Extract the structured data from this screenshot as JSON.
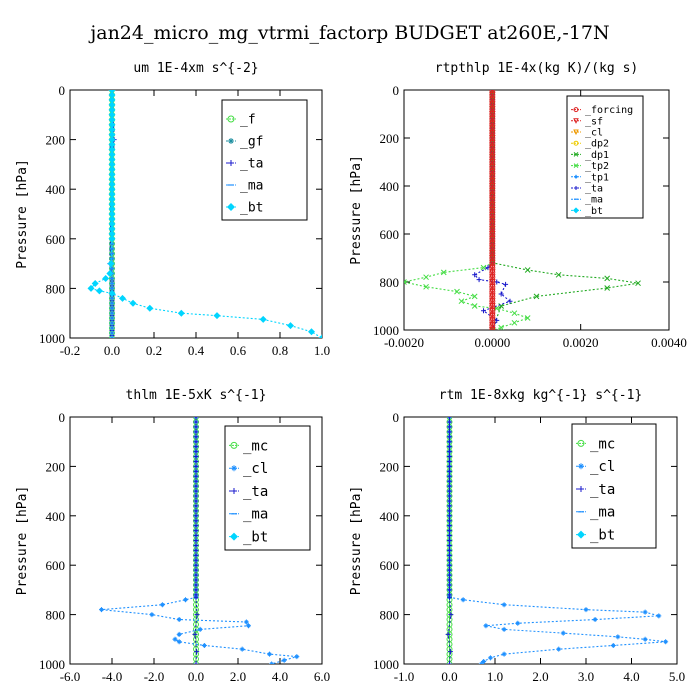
{
  "figure_title": "jan24_micro_mg_vtrmi_factorp  BUDGET at260E,-17N",
  "colors": {
    "axis": "#000000",
    "legend_border": "#000000",
    "series": {
      "forcing": "#dd2222",
      "sf": "#dd2222",
      "cl": "#ee9900",
      "dp2": "#eecc00",
      "dp1": "#22aa22",
      "tp2": "#44dd44",
      "tp1": "#1e90ff",
      "ta": "#1a1acc",
      "ma": "#1e90ff",
      "bt": "#00d5ff",
      "f": "#44dd44",
      "gf": "#1e8fa0",
      "mc": "#44dd44",
      "cl2": "#1e90ff"
    }
  },
  "chart_data": [
    {
      "id": "um",
      "type": "line",
      "title": "um   1E-4xm s^{-2}",
      "ylabel": "Pressure [hPa]",
      "xlim": [
        -0.2,
        1.0
      ],
      "ylim": [
        0,
        1000
      ],
      "xticks": [
        "-0.2",
        "0.0",
        "0.2",
        "0.4",
        "0.6",
        "0.8",
        "1.0"
      ],
      "xtick_values": [
        -0.2,
        0.0,
        0.2,
        0.4,
        0.6,
        0.8,
        1.0
      ],
      "yticks": [
        "0",
        "200",
        "400",
        "600",
        "800",
        "1000"
      ],
      "ytick_values": [
        0,
        200,
        400,
        600,
        800,
        1000
      ],
      "legend": [
        "_f",
        "_gf",
        "_ta",
        "_ma",
        "_bt"
      ],
      "series": [
        {
          "name": "_f",
          "color_key": "f",
          "x": [
            0,
            0
          ],
          "y": [
            0,
            1000
          ]
        },
        {
          "name": "_gf",
          "color_key": "gf",
          "x": [
            0,
            0
          ],
          "y": [
            0,
            1000
          ]
        },
        {
          "name": "_ta",
          "color_key": "ta",
          "x": [
            0,
            0.01,
            0,
            -0.01,
            0,
            0
          ],
          "y": [
            0,
            200,
            230,
            700,
            770,
            1000
          ]
        },
        {
          "name": "_ma",
          "color_key": "ma",
          "x": [
            0,
            0
          ],
          "y": [
            0,
            1000
          ]
        },
        {
          "name": "_bt",
          "color_key": "bt",
          "x": [
            0,
            0,
            0,
            -0.005,
            -0.01,
            -0.03,
            -0.08,
            -0.1,
            -0.06,
            0.0,
            0.05,
            0.1,
            0.18,
            0.33,
            0.5,
            0.72,
            0.85,
            0.95,
            1.0
          ],
          "y": [
            0,
            200,
            600,
            700,
            740,
            760,
            780,
            800,
            810,
            820,
            840,
            860,
            880,
            900,
            910,
            925,
            950,
            975,
            1000
          ]
        }
      ]
    },
    {
      "id": "rtpthlp",
      "type": "line",
      "title": "rtpthlp   1E-4x(kg K)/(kg s)",
      "ylabel": "Pressure [hPa]",
      "xlim": [
        -0.002,
        0.004
      ],
      "ylim": [
        0,
        1000
      ],
      "xticks": [
        "-0.0020",
        "0.0000",
        "0.0020",
        "0.0040"
      ],
      "xtick_values": [
        -0.002,
        0.0,
        0.002,
        0.004
      ],
      "yticks": [
        "0",
        "200",
        "400",
        "600",
        "800",
        "1000"
      ],
      "ytick_values": [
        0,
        200,
        400,
        600,
        800,
        1000
      ],
      "legend": [
        "_forcing",
        "_sf",
        "_cl",
        "_dp2",
        "_dp1",
        "_tp2",
        "_tp1",
        "_ta",
        "_ma",
        "_bt"
      ],
      "series": [
        {
          "name": "_tp2",
          "color_key": "tp2",
          "x": [
            0,
            0,
            -0.0002,
            -0.0011,
            -0.0015,
            -0.002,
            -0.0015,
            -0.0008,
            -0.0004,
            -0.0007,
            -0.0004,
            0.0001,
            0.0005,
            0.0008,
            0.0005,
            0.0002,
            0
          ],
          "y": [
            0,
            720,
            740,
            760,
            780,
            800,
            820,
            840,
            860,
            880,
            900,
            910,
            930,
            950,
            970,
            990,
            1000
          ]
        },
        {
          "name": "_dp1",
          "color_key": "dp1",
          "x": [
            0,
            0,
            0.0008,
            0.0015,
            0.0026,
            0.0033,
            0.0026,
            0.001,
            0.0002,
            0
          ],
          "y": [
            0,
            720,
            750,
            770,
            785,
            805,
            825,
            860,
            900,
            1000
          ]
        },
        {
          "name": "_ta",
          "color_key": "ta",
          "x": [
            0,
            0,
            -0.0001,
            -0.0004,
            -0.0003,
            0.0001,
            0.0003,
            0.0002,
            0.0004,
            -0.0002,
            0.0001,
            0
          ],
          "y": [
            0,
            720,
            740,
            770,
            790,
            800,
            810,
            850,
            880,
            920,
            960,
            1000
          ]
        },
        {
          "name": "_forcing",
          "color_key": "forcing",
          "x": [
            0,
            0
          ],
          "y": [
            0,
            1000
          ]
        },
        {
          "name": "_sf",
          "color_key": "sf",
          "x": [
            0,
            0
          ],
          "y": [
            0,
            1000
          ]
        }
      ]
    },
    {
      "id": "thlm",
      "type": "line",
      "title": "thlm   1E-5xK s^{-1}",
      "ylabel": "Pressure [hPa]",
      "xlim": [
        -6.0,
        6.0
      ],
      "ylim": [
        0,
        1000
      ],
      "xticks": [
        "-6.0",
        "-4.0",
        "-2.0",
        "0.0",
        "2.0",
        "4.0",
        "6.0"
      ],
      "xtick_values": [
        -6,
        -4,
        -2,
        0,
        2,
        4,
        6
      ],
      "yticks": [
        "0",
        "200",
        "400",
        "600",
        "800",
        "1000"
      ],
      "ytick_values": [
        0,
        200,
        400,
        600,
        800,
        1000
      ],
      "legend": [
        "_mc",
        "_cl",
        "_ta",
        "_ma",
        "_bt"
      ],
      "series": [
        {
          "name": "_mc",
          "color_key": "mc",
          "x": [
            0,
            0
          ],
          "y": [
            0,
            1000
          ]
        },
        {
          "name": "_cl",
          "color_key": "cl2",
          "x": [
            0,
            0,
            -0.5,
            -1.6,
            -4.5,
            -2.1,
            -0.8,
            2.4,
            2.5,
            0.2,
            -0.8,
            -1.0,
            -0.8,
            0.4,
            2.2,
            3.5,
            4.8,
            4.2,
            3.6
          ],
          "y": [
            0,
            730,
            740,
            760,
            780,
            800,
            820,
            830,
            845,
            860,
            880,
            900,
            910,
            925,
            940,
            960,
            970,
            985,
            1000
          ]
        },
        {
          "name": "_ta",
          "color_key": "ta",
          "x": [
            0,
            0,
            0.05,
            -0.05,
            0.03,
            0
          ],
          "y": [
            0,
            730,
            800,
            880,
            950,
            1000
          ]
        }
      ]
    },
    {
      "id": "rtm",
      "type": "line",
      "title": "rtm   1E-8xkg kg^{-1} s^{-1}",
      "ylabel": "Pressure [hPa]",
      "xlim": [
        -1.0,
        5.0
      ],
      "ylim": [
        0,
        1000
      ],
      "xticks": [
        "-1.0",
        "0.0",
        "1.0",
        "2.0",
        "3.0",
        "4.0",
        "5.0"
      ],
      "xtick_values": [
        -1,
        0,
        1,
        2,
        3,
        4,
        5
      ],
      "yticks": [
        "0",
        "200",
        "400",
        "600",
        "800",
        "1000"
      ],
      "ytick_values": [
        0,
        200,
        400,
        600,
        800,
        1000
      ],
      "legend": [
        "_mc",
        "_cl",
        "_ta",
        "_ma",
        "_bt"
      ],
      "series": [
        {
          "name": "_mc",
          "color_key": "mc",
          "x": [
            0,
            0
          ],
          "y": [
            0,
            1000
          ]
        },
        {
          "name": "_cl",
          "color_key": "cl2",
          "x": [
            0,
            0,
            0.3,
            1.2,
            3.0,
            4.3,
            4.6,
            3.2,
            1.5,
            0.8,
            1.2,
            2.5,
            3.7,
            4.3,
            4.75,
            3.6,
            2.4,
            1.2,
            0.9,
            0.75,
            0.7
          ],
          "y": [
            0,
            730,
            740,
            760,
            780,
            790,
            805,
            820,
            835,
            845,
            860,
            875,
            890,
            900,
            910,
            925,
            940,
            960,
            975,
            990,
            1000
          ]
        },
        {
          "name": "_ta",
          "color_key": "ta",
          "x": [
            0,
            0,
            0.03,
            -0.03,
            0.02,
            0
          ],
          "y": [
            0,
            730,
            800,
            880,
            950,
            1000
          ]
        }
      ]
    }
  ]
}
